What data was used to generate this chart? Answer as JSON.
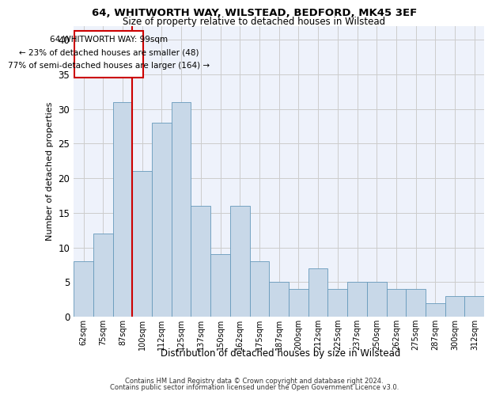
{
  "title_line1": "64, WHITWORTH WAY, WILSTEAD, BEDFORD, MK45 3EF",
  "title_line2": "Size of property relative to detached houses in Wilstead",
  "xlabel": "Distribution of detached houses by size in Wilstead",
  "ylabel": "Number of detached properties",
  "categories": [
    "62sqm",
    "75sqm",
    "87sqm",
    "100sqm",
    "112sqm",
    "125sqm",
    "137sqm",
    "150sqm",
    "162sqm",
    "175sqm",
    "187sqm",
    "200sqm",
    "212sqm",
    "225sqm",
    "237sqm",
    "250sqm",
    "262sqm",
    "275sqm",
    "287sqm",
    "300sqm",
    "312sqm"
  ],
  "values": [
    8,
    12,
    31,
    21,
    28,
    31,
    16,
    9,
    16,
    8,
    5,
    4,
    7,
    4,
    5,
    5,
    4,
    4,
    2,
    3,
    3
  ],
  "bar_color": "#c8d8e8",
  "bar_edge_color": "#6699bb",
  "grid_color": "#cccccc",
  "background_color": "#ffffff",
  "plot_bg_color": "#eef2fb",
  "marker_label": "64 WHITWORTH WAY: 99sqm",
  "marker_sub1": "← 23% of detached houses are smaller (48)",
  "marker_sub2": "77% of semi-detached houses are larger (164) →",
  "annotation_box_color": "#ffffff",
  "annotation_border_color": "#cc0000",
  "marker_line_color": "#cc0000",
  "ylim": [
    0,
    42
  ],
  "footer_line1": "Contains HM Land Registry data © Crown copyright and database right 2024.",
  "footer_line2": "Contains public sector information licensed under the Open Government Licence v3.0."
}
